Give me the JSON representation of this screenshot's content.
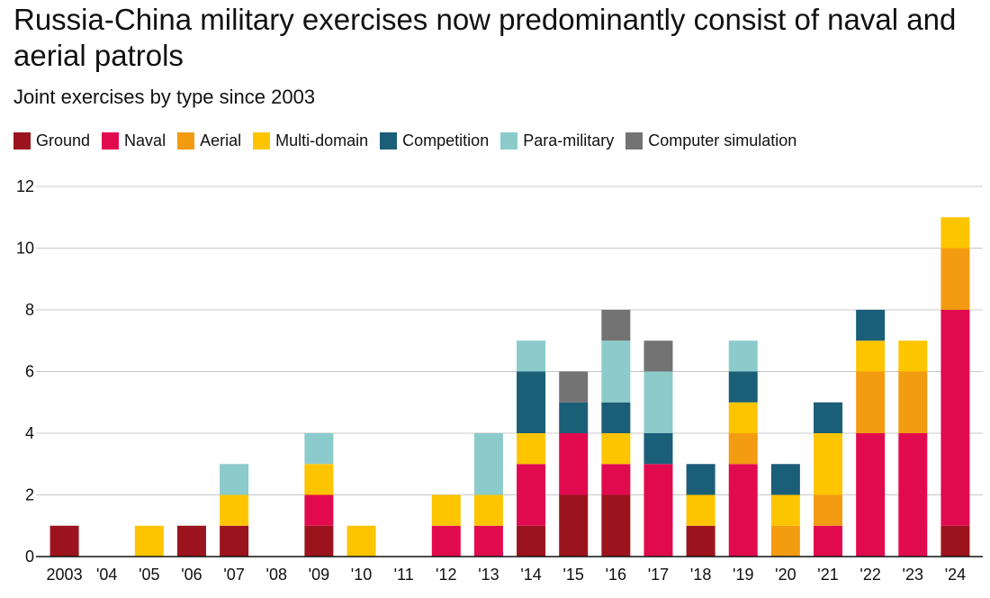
{
  "title": "Russia-China military exercises now predominantly consist of naval and aerial patrols",
  "subtitle": "Joint exercises by type since 2003",
  "colors": {
    "Ground": "#9b141d",
    "Naval": "#e20a4f",
    "Aerial": "#f39c12",
    "Multi-domain": "#fdc500",
    "Competition": "#1b5e78",
    "Para-military": "#8ccbcb",
    "Computer simulation": "#737373"
  },
  "chart_data": {
    "type": "bar",
    "stacked": true,
    "grid": true,
    "legend_position": "top-left",
    "ylim": [
      0,
      12
    ],
    "yticks": [
      "0",
      "2",
      "4",
      "6",
      "8",
      "10",
      "12"
    ],
    "categories": [
      "2003",
      "'04",
      "'05",
      "'06",
      "'07",
      "'08",
      "'09",
      "'10",
      "'11",
      "'12",
      "'13",
      "'14",
      "'15",
      "'16",
      "'17",
      "'18",
      "'19",
      "'20",
      "'21",
      "'22",
      "'23",
      "'24"
    ],
    "series": [
      {
        "name": "Ground",
        "values": [
          1,
          0,
          0,
          1,
          1,
          0,
          1,
          0,
          0,
          0,
          0,
          1,
          2,
          2,
          0,
          1,
          0,
          0,
          0,
          0,
          0,
          1
        ]
      },
      {
        "name": "Naval",
        "values": [
          0,
          0,
          0,
          0,
          0,
          0,
          1,
          0,
          0,
          1,
          1,
          2,
          2,
          1,
          3,
          0,
          3,
          0,
          1,
          4,
          4,
          7
        ]
      },
      {
        "name": "Aerial",
        "values": [
          0,
          0,
          0,
          0,
          0,
          0,
          0,
          0,
          0,
          0,
          0,
          0,
          0,
          0,
          0,
          0,
          1,
          1,
          1,
          2,
          2,
          2
        ]
      },
      {
        "name": "Multi-domain",
        "values": [
          0,
          0,
          1,
          0,
          1,
          0,
          1,
          1,
          0,
          1,
          1,
          1,
          0,
          1,
          0,
          1,
          1,
          1,
          2,
          1,
          1,
          1
        ]
      },
      {
        "name": "Competition",
        "values": [
          0,
          0,
          0,
          0,
          0,
          0,
          0,
          0,
          0,
          0,
          0,
          2,
          1,
          1,
          1,
          1,
          1,
          1,
          1,
          1,
          0,
          0
        ]
      },
      {
        "name": "Para-military",
        "values": [
          0,
          0,
          0,
          0,
          1,
          0,
          1,
          0,
          0,
          0,
          2,
          1,
          0,
          2,
          2,
          0,
          1,
          0,
          0,
          0,
          0,
          0
        ]
      },
      {
        "name": "Computer simulation",
        "values": [
          0,
          0,
          0,
          0,
          0,
          0,
          0,
          0,
          0,
          0,
          0,
          0,
          1,
          1,
          1,
          0,
          0,
          0,
          0,
          0,
          0,
          0
        ]
      }
    ]
  }
}
